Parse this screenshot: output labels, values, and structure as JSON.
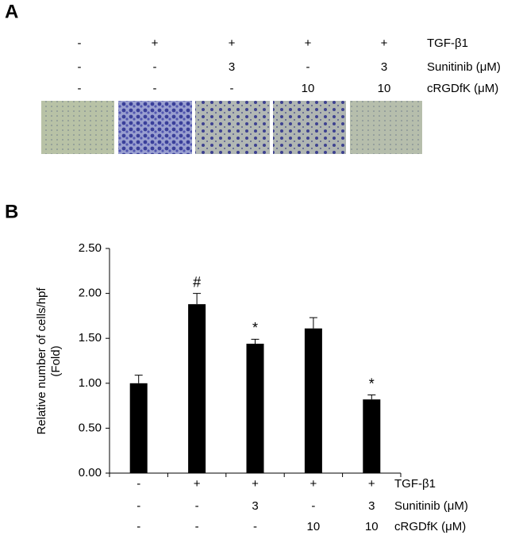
{
  "panel_a": {
    "label": "A",
    "conditions": [
      {
        "name": "TGF-β1",
        "values": [
          "-",
          "+",
          "+",
          "+",
          "+"
        ]
      },
      {
        "name": "Sunitinib (μM)",
        "values": [
          "-",
          "-",
          "3",
          "-",
          "3"
        ]
      },
      {
        "name": "cRGDfK (μM)",
        "values": [
          "-",
          "-",
          "-",
          "10",
          "10"
        ]
      }
    ]
  },
  "chart_data": {
    "type": "bar",
    "panel_label": "B",
    "ylabel": [
      "Relative number of cells/hpf",
      "(Fold)"
    ],
    "values": [
      1.0,
      1.88,
      1.44,
      1.61,
      0.82
    ],
    "errors": [
      0.09,
      0.12,
      0.05,
      0.12,
      0.05
    ],
    "annotations": [
      null,
      "#",
      "*",
      null,
      "*"
    ],
    "color": "#000000",
    "ylim": [
      0,
      2.5
    ],
    "yticks": [
      {
        "value": 0,
        "label": "0.00"
      },
      {
        "value": 0.5,
        "label": "0.50"
      },
      {
        "value": 1,
        "label": "1.00"
      },
      {
        "value": 1.5,
        "label": "1.50"
      },
      {
        "value": 2,
        "label": "2.00"
      },
      {
        "value": 2.5,
        "label": "2.50"
      }
    ],
    "conditions": [
      {
        "name": "TGF-β1",
        "values": [
          "-",
          "+",
          "+",
          "+",
          "+"
        ]
      },
      {
        "name": "Sunitinib (μM)",
        "values": [
          "-",
          "-",
          "3",
          "-",
          "3"
        ]
      },
      {
        "name": "cRGDfK (μM)",
        "values": [
          "-",
          "-",
          "-",
          "10",
          "10"
        ]
      }
    ]
  }
}
